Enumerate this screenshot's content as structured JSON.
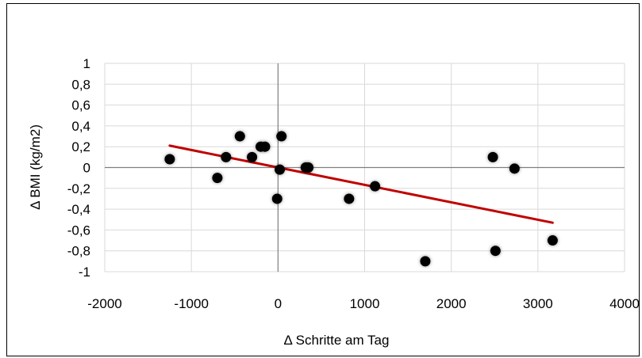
{
  "chart_data": {
    "type": "scatter",
    "title": "",
    "xlabel": "Δ Schritte am Tag",
    "ylabel": "Δ BMI (kg/m2)",
    "xlim": [
      -2000,
      4000
    ],
    "ylim": [
      -1,
      1
    ],
    "x_ticks": [
      -2000,
      -1000,
      0,
      1000,
      2000,
      3000,
      4000
    ],
    "x_tick_labels": [
      "-2000",
      "-1000",
      "0",
      "1000",
      "2000",
      "3000",
      "4000"
    ],
    "y_ticks": [
      1,
      0.8,
      0.6,
      0.4,
      0.2,
      0,
      -0.2,
      -0.4,
      -0.6,
      -0.8,
      -1
    ],
    "y_tick_labels": [
      "1",
      "0,8",
      "0,6",
      "0,4",
      "0,2",
      "0",
      "-0,2",
      "-0,4",
      "-0,6",
      "-0,8",
      "-1"
    ],
    "grid": true,
    "series": [
      {
        "values": [
          {
            "x": -1250,
            "y": 0.08
          },
          {
            "x": -700,
            "y": -0.1
          },
          {
            "x": -600,
            "y": 0.1
          },
          {
            "x": -440,
            "y": 0.3
          },
          {
            "x": -300,
            "y": 0.1
          },
          {
            "x": -200,
            "y": 0.2
          },
          {
            "x": -150,
            "y": 0.2
          },
          {
            "x": -10,
            "y": -0.3
          },
          {
            "x": 20,
            "y": -0.02
          },
          {
            "x": 40,
            "y": 0.3
          },
          {
            "x": 320,
            "y": 0.0
          },
          {
            "x": 350,
            "y": 0.0
          },
          {
            "x": 820,
            "y": -0.3
          },
          {
            "x": 1120,
            "y": -0.18
          },
          {
            "x": 1700,
            "y": -0.9
          },
          {
            "x": 2480,
            "y": 0.1
          },
          {
            "x": 2510,
            "y": -0.8
          },
          {
            "x": 2730,
            "y": -0.01
          },
          {
            "x": 3170,
            "y": -0.7
          }
        ]
      }
    ],
    "trendline": {
      "type": "linear",
      "x": [
        -1250,
        3170
      ],
      "y": [
        0.21,
        -0.53
      ]
    },
    "colors": {
      "marker_fill": "#000000",
      "trendline": "#c00000",
      "gridline": "#d9d9d9",
      "zero_axis": "#7f7f7f"
    }
  }
}
